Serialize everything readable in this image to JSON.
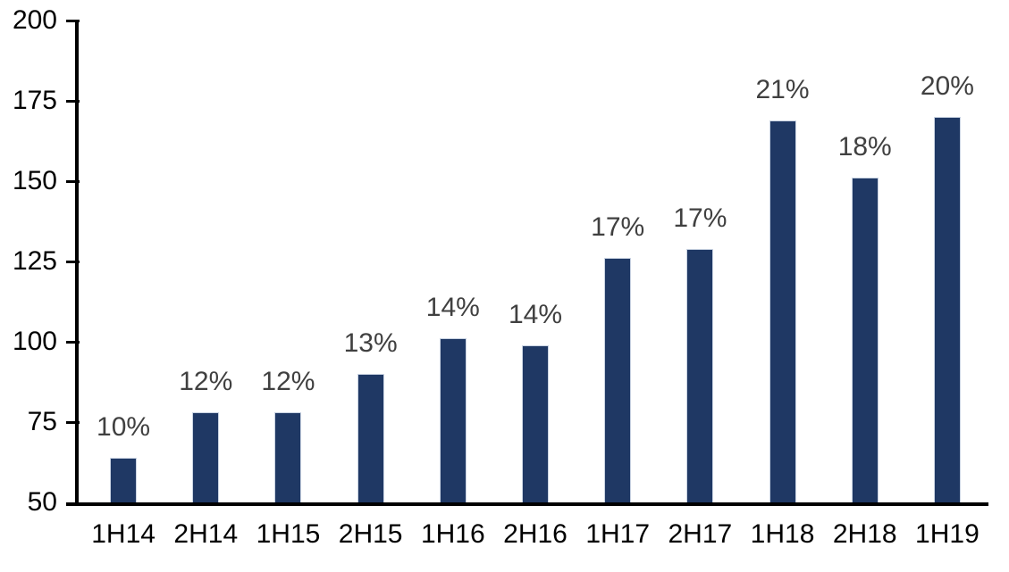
{
  "chart_data": {
    "type": "bar",
    "title": "",
    "xlabel": "",
    "ylabel": "",
    "categories": [
      "1H14",
      "2H14",
      "1H15",
      "2H15",
      "1H16",
      "2H16",
      "1H17",
      "2H17",
      "1H18",
      "2H18",
      "1H19"
    ],
    "values": [
      64,
      78,
      78,
      90,
      101,
      99,
      126,
      129,
      169,
      151,
      170
    ],
    "bar_labels": [
      "10%",
      "12%",
      "12%",
      "13%",
      "14%",
      "14%",
      "17%",
      "17%",
      "21%",
      "18%",
      "20%"
    ],
    "ylim": [
      50,
      200
    ],
    "yticks": [
      50,
      75,
      100,
      125,
      150,
      175,
      200
    ],
    "grid": false,
    "legend_position": "none",
    "colors": {
      "bar": "#1F3864",
      "bar_border": "#C9D3E2",
      "data_label": "#404040",
      "axis": "#000000",
      "tick_label": "#000000",
      "background": "#FFFFFF"
    }
  }
}
